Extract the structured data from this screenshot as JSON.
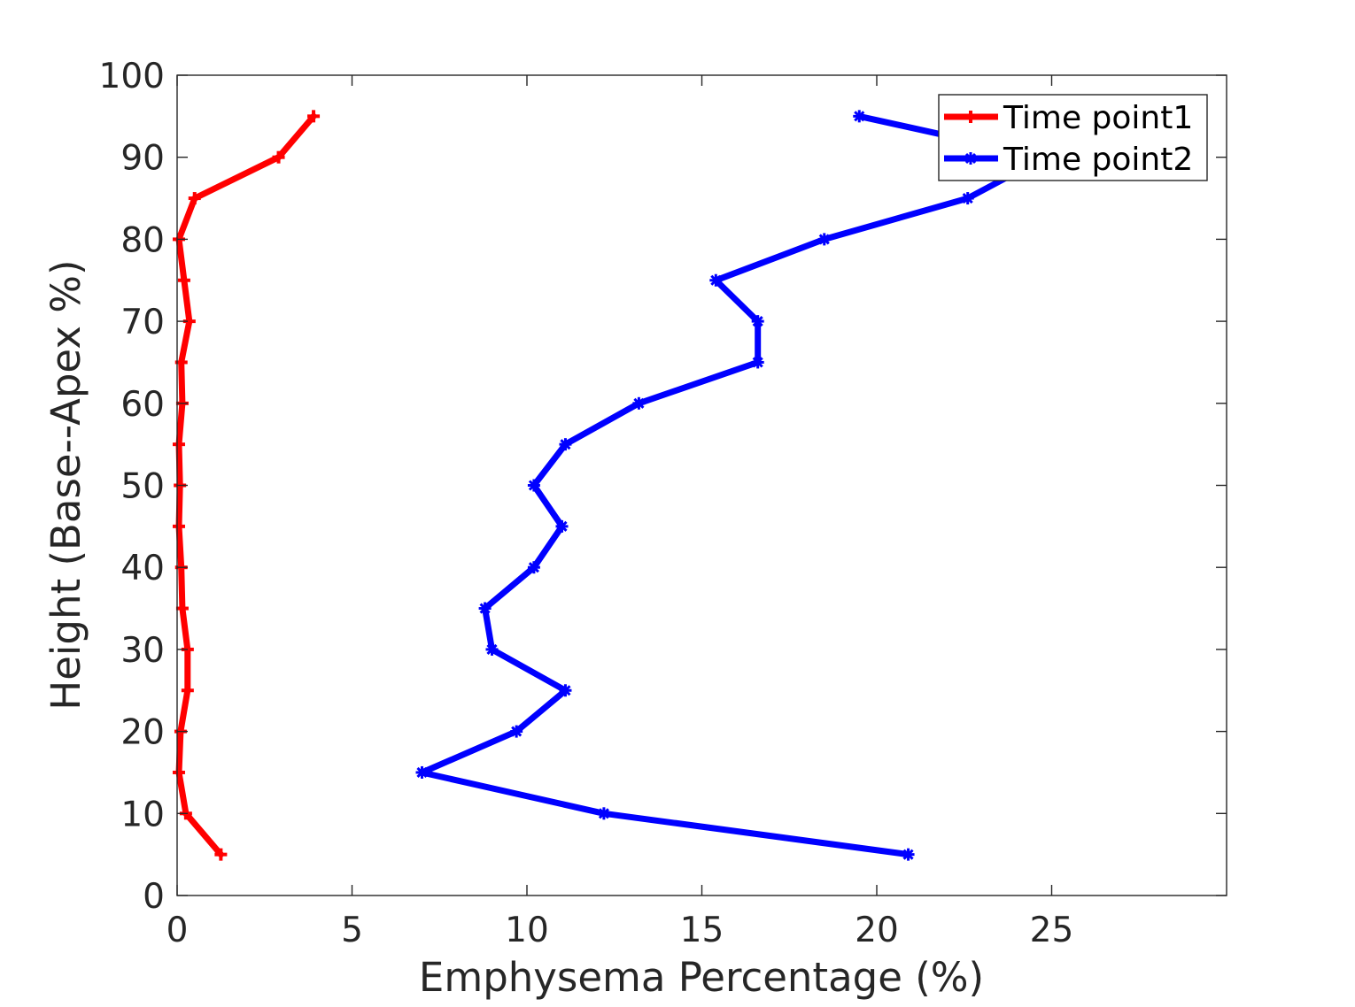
{
  "chart_data": {
    "type": "line",
    "title": "",
    "xlabel": "Emphysema Percentage (%)",
    "ylabel": "Height (Base--Apex %)",
    "xlim": [
      0,
      30
    ],
    "ylim": [
      0,
      100
    ],
    "xticks": [
      0,
      5,
      10,
      15,
      20,
      25
    ],
    "yticks": [
      0,
      10,
      20,
      30,
      40,
      50,
      60,
      70,
      80,
      90,
      100
    ],
    "grid": false,
    "legend_position": "top-right",
    "series": [
      {
        "name": "Time point1",
        "color": "#ff0000",
        "marker": "plus",
        "points": [
          {
            "x": 1.25,
            "y": 5
          },
          {
            "x": 0.25,
            "y": 10
          },
          {
            "x": 0.05,
            "y": 15
          },
          {
            "x": 0.1,
            "y": 20
          },
          {
            "x": 0.3,
            "y": 25
          },
          {
            "x": 0.3,
            "y": 30
          },
          {
            "x": 0.15,
            "y": 35
          },
          {
            "x": 0.12,
            "y": 40
          },
          {
            "x": 0.05,
            "y": 45
          },
          {
            "x": 0.08,
            "y": 50
          },
          {
            "x": 0.05,
            "y": 55
          },
          {
            "x": 0.15,
            "y": 60
          },
          {
            "x": 0.12,
            "y": 65
          },
          {
            "x": 0.35,
            "y": 70
          },
          {
            "x": 0.2,
            "y": 75
          },
          {
            "x": 0.05,
            "y": 80
          },
          {
            "x": 0.5,
            "y": 85
          },
          {
            "x": 2.9,
            "y": 90
          },
          {
            "x": 3.9,
            "y": 95
          }
        ]
      },
      {
        "name": "Time point2",
        "color": "#0000ff",
        "marker": "star",
        "points": [
          {
            "x": 20.9,
            "y": 5
          },
          {
            "x": 12.2,
            "y": 10
          },
          {
            "x": 7.0,
            "y": 15
          },
          {
            "x": 9.7,
            "y": 20
          },
          {
            "x": 11.1,
            "y": 25
          },
          {
            "x": 9.0,
            "y": 30
          },
          {
            "x": 8.8,
            "y": 35
          },
          {
            "x": 10.2,
            "y": 40
          },
          {
            "x": 11.0,
            "y": 45
          },
          {
            "x": 10.2,
            "y": 50
          },
          {
            "x": 11.1,
            "y": 55
          },
          {
            "x": 13.2,
            "y": 60
          },
          {
            "x": 16.6,
            "y": 65
          },
          {
            "x": 16.6,
            "y": 70
          },
          {
            "x": 15.4,
            "y": 75
          },
          {
            "x": 18.5,
            "y": 80
          },
          {
            "x": 22.6,
            "y": 85
          },
          {
            "x": 24.8,
            "y": 90
          },
          {
            "x": 19.5,
            "y": 95
          }
        ]
      }
    ]
  }
}
